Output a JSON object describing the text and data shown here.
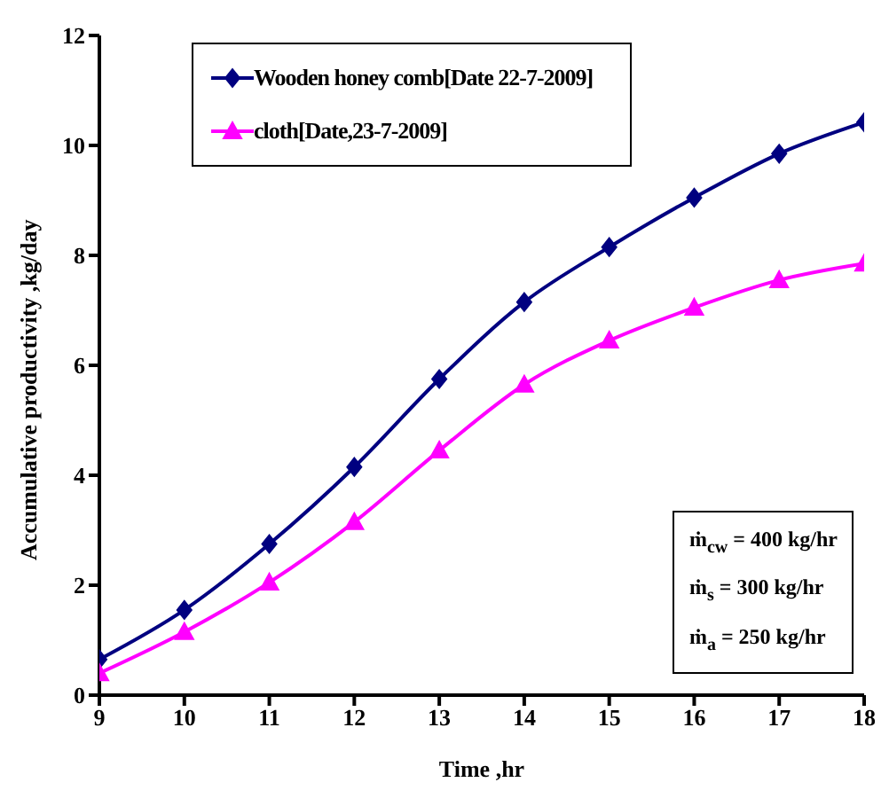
{
  "chart_data": {
    "type": "line",
    "xlabel": "Time ,hr",
    "ylabel": "Accumulative productivity ,kg/day",
    "x": [
      9,
      10,
      11,
      12,
      13,
      14,
      15,
      16,
      17,
      18
    ],
    "series": [
      {
        "name": "Wooden honey comb[Date 22-7-2009]",
        "color": "#000080",
        "marker": "diamond",
        "values": [
          0.65,
          1.55,
          2.75,
          4.15,
          5.75,
          7.15,
          8.15,
          9.05,
          9.85,
          10.42
        ]
      },
      {
        "name": "cloth[Date,23-7-2009]",
        "color": "#ff00ff",
        "marker": "triangle",
        "values": [
          0.4,
          1.15,
          2.05,
          3.15,
          4.45,
          5.65,
          6.45,
          7.05,
          7.55,
          7.85
        ]
      }
    ],
    "xlim": [
      9,
      18
    ],
    "xticks": [
      9,
      10,
      11,
      12,
      13,
      14,
      15,
      16,
      17,
      18
    ],
    "ylim": [
      0,
      12
    ],
    "yticks": [
      0,
      2,
      4,
      6,
      8,
      10,
      12
    ],
    "grid": false,
    "legend": "top left",
    "line_style": "solid",
    "annotations": [
      "ṁ$_{cw}$ = 400 kg/hr",
      "ṁ$_{s}$ = 300 kg/hr",
      "ṁ$_{a}$ = 250 kg/hr"
    ]
  }
}
